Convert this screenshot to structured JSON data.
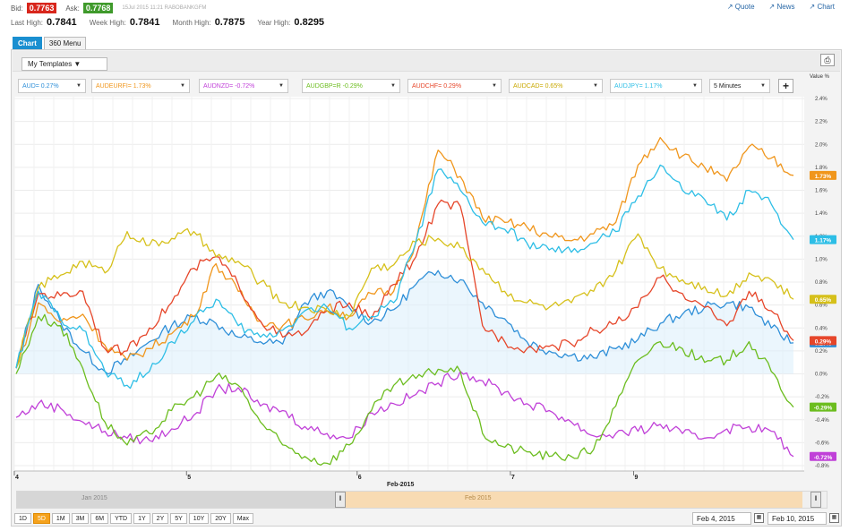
{
  "quote": {
    "bid_label": "Bid:",
    "bid": "0.7763",
    "bid_color": "#d8261c",
    "ask_label": "Ask:",
    "ask": "0.7768",
    "ask_color": "#3f9a2b",
    "stamp": "15Jul 2015  11:21 RABOBANKGFM"
  },
  "stats": [
    {
      "label": "Last High:",
      "value": "0.7841"
    },
    {
      "label": "Week High:",
      "value": "0.7841"
    },
    {
      "label": "Month High:",
      "value": "0.7875"
    },
    {
      "label": "Year High:",
      "value": "0.8295"
    }
  ],
  "links": [
    "Quote",
    "News",
    "Chart"
  ],
  "tabs": [
    {
      "label": "Chart",
      "active": true
    },
    {
      "label": "360 Menu",
      "active": false
    }
  ],
  "templates_label": "My Templates ▼",
  "interval_label": "5 Minutes",
  "value_header": "Value %",
  "chart_data": {
    "type": "line",
    "x_axis_title": "Feb-2015",
    "x_ticks": [
      "4",
      "5",
      "6",
      "7",
      "9"
    ],
    "y_ticks": [
      "2.4%",
      "2.2%",
      "2.0%",
      "1.8%",
      "1.6%",
      "1.4%",
      "1.2%",
      "1.0%",
      "0.8%",
      "0.6%",
      "0.4%",
      "0.2%",
      "0.0%",
      "-0.2%",
      "-0.4%",
      "-0.6%",
      "-0.8%"
    ],
    "ylim": [
      -0.8,
      2.4
    ],
    "series": [
      {
        "name": "AUD=",
        "pill": "AUD= 0.27%",
        "color": "#2e8fd8",
        "last_label": "0.27%",
        "values": [
          0.05,
          0.78,
          0.45,
          0.2,
          0.02,
          0.12,
          0.28,
          0.42,
          0.5,
          0.44,
          0.32,
          0.28,
          0.26,
          0.62,
          0.72,
          0.58,
          0.45,
          0.56,
          0.78,
          0.9,
          0.82,
          0.62,
          0.48,
          0.28,
          0.2,
          0.16,
          0.14,
          0.22,
          0.3,
          0.44,
          0.52,
          0.58,
          0.62,
          0.58,
          0.4,
          0.27
        ]
      },
      {
        "name": "AUDEURFI=",
        "pill": "AUDEURFI= 1.73%",
        "color": "#f0961c",
        "last_label": "1.73%",
        "values": [
          0.05,
          0.62,
          0.45,
          0.52,
          0.25,
          0.12,
          0.22,
          0.35,
          0.5,
          0.96,
          0.72,
          0.46,
          0.42,
          0.48,
          0.58,
          0.5,
          0.7,
          0.72,
          1.15,
          1.95,
          1.72,
          1.36,
          1.32,
          1.28,
          1.2,
          1.16,
          1.22,
          1.32,
          1.82,
          2.06,
          1.9,
          1.8,
          1.68,
          1.98,
          1.88,
          1.73
        ]
      },
      {
        "name": "AUDNZD=",
        "pill": "AUDNZD= -0.72%",
        "color": "#c040d8",
        "last_label": "-0.72%",
        "values": [
          -0.38,
          -0.26,
          -0.3,
          -0.42,
          -0.5,
          -0.56,
          -0.58,
          -0.48,
          -0.36,
          -0.14,
          -0.12,
          -0.28,
          -0.32,
          -0.46,
          -0.52,
          -0.56,
          -0.34,
          -0.26,
          -0.18,
          -0.08,
          0.02,
          -0.06,
          -0.16,
          -0.26,
          -0.32,
          -0.42,
          -0.54,
          -0.52,
          -0.5,
          -0.44,
          -0.52,
          -0.56,
          -0.48,
          -0.46,
          -0.5,
          -0.72
        ]
      },
      {
        "name": "AUDGBP=R",
        "pill": "AUDGBP=R -0.29%",
        "color": "#6cbd1f",
        "last_label": "-0.29%",
        "values": [
          0.0,
          0.5,
          0.42,
          0.05,
          -0.42,
          -0.62,
          -0.52,
          -0.32,
          -0.2,
          -0.02,
          -0.1,
          -0.42,
          -0.62,
          -0.72,
          -0.78,
          -0.62,
          -0.32,
          -0.1,
          -0.04,
          0.04,
          0.02,
          -0.52,
          -0.64,
          -0.68,
          -0.72,
          -0.72,
          -0.66,
          -0.28,
          0.12,
          0.28,
          0.22,
          0.1,
          0.12,
          0.28,
          0.02,
          -0.29
        ]
      },
      {
        "name": "AUDCHF=",
        "pill": "AUDCHF= 0.29%",
        "color": "#e6462a",
        "last_label": "0.29%",
        "values": [
          0.05,
          0.7,
          0.68,
          0.72,
          0.22,
          0.2,
          0.4,
          0.62,
          0.92,
          1.02,
          0.78,
          0.46,
          0.32,
          0.36,
          0.55,
          0.62,
          0.48,
          0.78,
          1.02,
          1.48,
          1.46,
          0.42,
          0.28,
          0.22,
          0.24,
          0.26,
          0.38,
          0.44,
          0.58,
          0.84,
          0.7,
          0.58,
          0.42,
          0.72,
          0.55,
          0.29
        ]
      },
      {
        "name": "AUDCAD=",
        "pill": "AUDCAD= 0.65%",
        "color": "#d6c01a",
        "last_label": "0.65%",
        "values": [
          0.05,
          0.75,
          0.86,
          0.98,
          0.88,
          1.24,
          1.12,
          1.18,
          1.24,
          1.02,
          0.98,
          0.8,
          0.62,
          0.58,
          0.55,
          0.5,
          0.92,
          0.95,
          1.15,
          1.18,
          1.1,
          0.92,
          0.72,
          0.62,
          0.58,
          0.62,
          0.72,
          0.9,
          1.22,
          0.92,
          0.82,
          0.76,
          0.68,
          0.88,
          0.82,
          0.65
        ]
      },
      {
        "name": "AUDJPY=",
        "pill": "AUDJPY= 1.17%",
        "color": "#2dbee6",
        "last_label": "1.17%",
        "values": [
          0.05,
          0.72,
          0.48,
          0.38,
          0.02,
          -0.1,
          0.02,
          0.28,
          0.46,
          0.65,
          0.42,
          0.32,
          0.38,
          0.55,
          0.58,
          0.4,
          0.5,
          0.62,
          1.15,
          1.78,
          1.6,
          1.32,
          1.26,
          1.14,
          1.08,
          1.06,
          1.14,
          1.24,
          1.55,
          1.82,
          1.6,
          1.52,
          1.34,
          1.6,
          1.48,
          1.17
        ]
      }
    ]
  },
  "navigator": {
    "left_label": "Jan 2015",
    "right_label": "Feb 2015"
  },
  "ranges": [
    {
      "label": "1D",
      "active": false
    },
    {
      "label": "5D",
      "active": true
    },
    {
      "label": "1M",
      "active": false
    },
    {
      "label": "3M",
      "active": false
    },
    {
      "label": "6M",
      "active": false
    },
    {
      "label": "YTD",
      "active": false
    },
    {
      "label": "1Y",
      "active": false
    },
    {
      "label": "2Y",
      "active": false
    },
    {
      "label": "5Y",
      "active": false
    },
    {
      "label": "10Y",
      "active": false
    },
    {
      "label": "20Y",
      "active": false
    },
    {
      "label": "Max",
      "active": false
    }
  ],
  "date_from": "Feb 4, 2015",
  "date_to": "Feb 10, 2015"
}
